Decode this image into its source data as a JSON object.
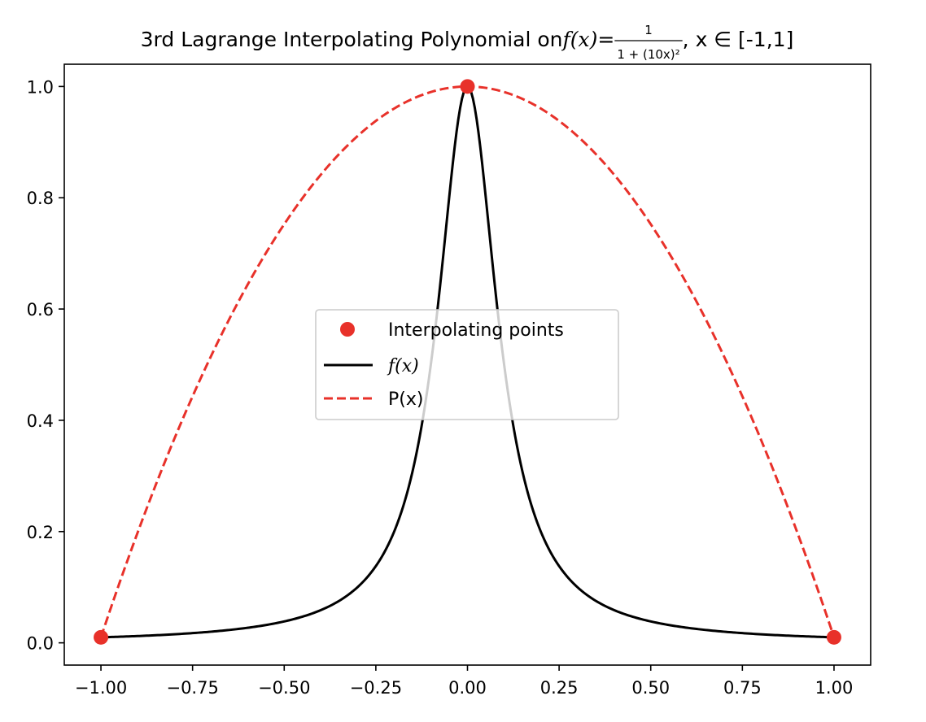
{
  "chart_data": {
    "type": "line",
    "title": {
      "prefix": "3rd Lagrange Interpolating Polynomial on ",
      "function_name": "f(x)",
      "equals": " = ",
      "numerator": "1",
      "denominator": "1 + (10x)²",
      "suffix": ", x ∈ [-1,1]"
    },
    "xlim": [
      -1.1,
      1.1
    ],
    "ylim": [
      -0.04,
      1.04
    ],
    "xticks": [
      -1.0,
      -0.75,
      -0.5,
      -0.25,
      0.0,
      0.25,
      0.5,
      0.75,
      1.0
    ],
    "xtick_labels": [
      "−1.00",
      "−0.75",
      "−0.50",
      "−0.25",
      "0.00",
      "0.25",
      "0.50",
      "0.75",
      "1.00"
    ],
    "yticks": [
      0.0,
      0.2,
      0.4,
      0.6,
      0.8,
      1.0
    ],
    "ytick_labels": [
      "0.0",
      "0.2",
      "0.4",
      "0.6",
      "0.8",
      "1.0"
    ],
    "grid": false,
    "legend": {
      "placement": "center",
      "entries": [
        {
          "label": "Interpolating points",
          "style": "marker",
          "color": "#e8312a"
        },
        {
          "label": "f(x)",
          "style": "solid",
          "color": "#000000",
          "math": true
        },
        {
          "label": "P(x)",
          "style": "dashed",
          "color": "#e8312a"
        }
      ]
    },
    "series": [
      {
        "name": "Interpolating points",
        "kind": "scatter",
        "color": "#e8312a",
        "x": [
          -1.0,
          0.0,
          1.0
        ],
        "y": [
          0.0099,
          1.0,
          0.0099
        ]
      },
      {
        "name": "f(x)",
        "kind": "line",
        "color": "#000000",
        "dash": "solid",
        "formula": "1/(1+(10x)^2)",
        "x_range": [
          -1.0,
          1.0
        ],
        "samples": 401
      },
      {
        "name": "P(x)",
        "kind": "line",
        "color": "#e8312a",
        "dash": "dashed",
        "formula": "1 - 0.9901x^2",
        "x_range": [
          -1.0,
          1.0
        ],
        "samples": 201
      }
    ]
  }
}
